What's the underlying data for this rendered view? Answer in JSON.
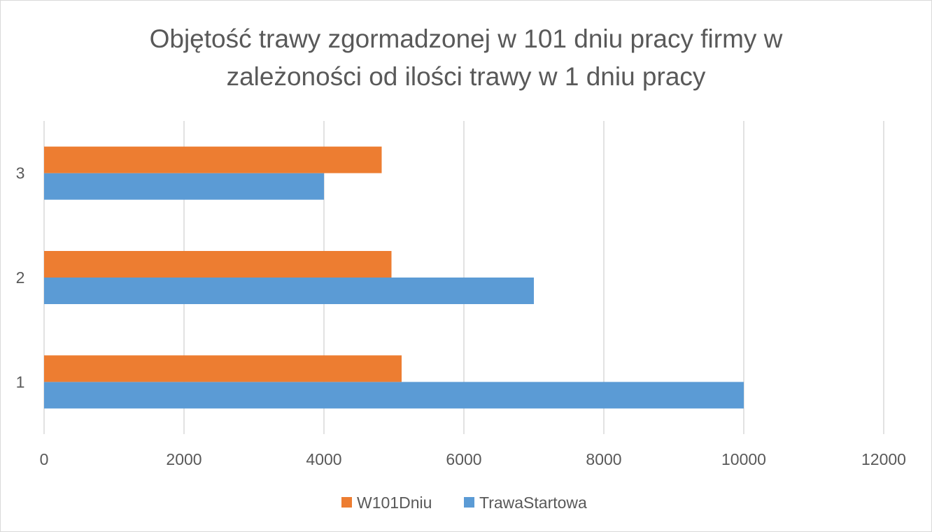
{
  "chart_data": {
    "type": "bar",
    "orientation": "horizontal",
    "title_lines": [
      "Objętość trawy zgormadzonej w 101 dniu pracy firmy w",
      "zależoności od ilości trawy w 1 dniu pracy"
    ],
    "categories": [
      "1",
      "2",
      "3"
    ],
    "series": [
      {
        "name": "TrawaStartowa",
        "values": [
          10000,
          7000,
          4000
        ],
        "color": "#5b9bd5"
      },
      {
        "name": "W101Dniu",
        "values": [
          5110,
          4965,
          4825
        ],
        "color": "#ed7d31"
      }
    ],
    "xlim": [
      0,
      12000
    ],
    "x_ticks": [
      "0",
      "2000",
      "4000",
      "6000",
      "8000",
      "10000",
      "12000"
    ],
    "x_tick_values": [
      0,
      2000,
      4000,
      6000,
      8000,
      10000,
      12000
    ],
    "grid": true,
    "legend_position": "bottom",
    "legend_order": [
      "W101Dniu",
      "TrawaStartowa"
    ]
  }
}
